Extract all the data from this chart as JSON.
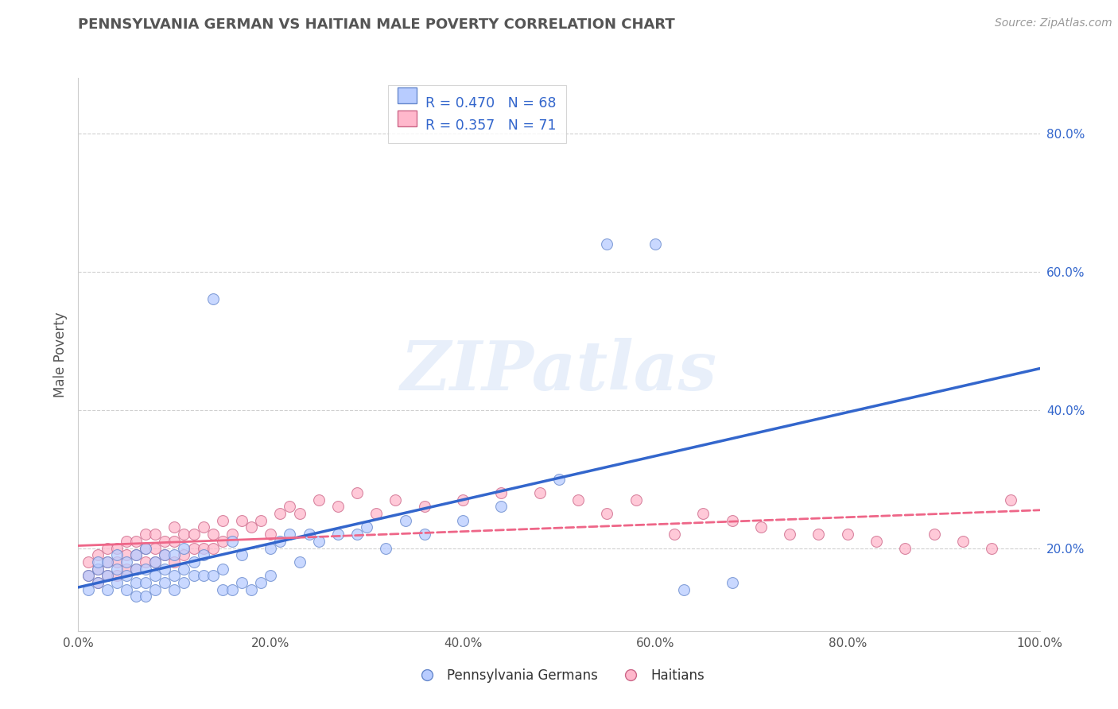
{
  "title": "PENNSYLVANIA GERMAN VS HAITIAN MALE POVERTY CORRELATION CHART",
  "source": "Source: ZipAtlas.com",
  "ylabel": "Male Poverty",
  "watermark": "ZIPatlas",
  "bg_color": "#ffffff",
  "grid_color": "#d0d0d0",
  "blue_face": "#b8ccff",
  "blue_edge": "#6688cc",
  "blue_line": "#3366cc",
  "pink_face": "#ffb8cc",
  "pink_edge": "#cc6688",
  "pink_line": "#ee6688",
  "legend_color": "#3366cc",
  "R_blue": 0.47,
  "N_blue": 68,
  "R_pink": 0.357,
  "N_pink": 71,
  "legend_label_blue": "Pennsylvania Germans",
  "legend_label_pink": "Haitians",
  "xlim": [
    0.0,
    1.0
  ],
  "ylim": [
    0.08,
    0.88
  ],
  "x_ticks": [
    0.0,
    0.2,
    0.4,
    0.6,
    0.8,
    1.0
  ],
  "x_tick_labels": [
    "0.0%",
    "20.0%",
    "40.0%",
    "60.0%",
    "80.0%",
    "100.0%"
  ],
  "y_ticks_right": [
    0.2,
    0.4,
    0.6,
    0.8
  ],
  "y_tick_labels_right": [
    "20.0%",
    "40.0%",
    "60.0%",
    "80.0%"
  ],
  "blue_scatter_x": [
    0.01,
    0.01,
    0.02,
    0.02,
    0.02,
    0.03,
    0.03,
    0.03,
    0.04,
    0.04,
    0.04,
    0.05,
    0.05,
    0.05,
    0.06,
    0.06,
    0.06,
    0.06,
    0.07,
    0.07,
    0.07,
    0.07,
    0.08,
    0.08,
    0.08,
    0.09,
    0.09,
    0.09,
    0.1,
    0.1,
    0.1,
    0.11,
    0.11,
    0.11,
    0.12,
    0.12,
    0.13,
    0.13,
    0.14,
    0.14,
    0.15,
    0.15,
    0.16,
    0.16,
    0.17,
    0.17,
    0.18,
    0.19,
    0.2,
    0.2,
    0.21,
    0.22,
    0.23,
    0.24,
    0.25,
    0.27,
    0.29,
    0.3,
    0.32,
    0.34,
    0.36,
    0.4,
    0.44,
    0.5,
    0.55,
    0.6,
    0.63,
    0.68
  ],
  "blue_scatter_y": [
    0.14,
    0.16,
    0.15,
    0.17,
    0.18,
    0.14,
    0.16,
    0.18,
    0.15,
    0.17,
    0.19,
    0.14,
    0.16,
    0.18,
    0.13,
    0.15,
    0.17,
    0.19,
    0.13,
    0.15,
    0.17,
    0.2,
    0.14,
    0.16,
    0.18,
    0.15,
    0.17,
    0.19,
    0.14,
    0.16,
    0.19,
    0.15,
    0.17,
    0.2,
    0.16,
    0.18,
    0.16,
    0.19,
    0.16,
    0.56,
    0.14,
    0.17,
    0.14,
    0.21,
    0.15,
    0.19,
    0.14,
    0.15,
    0.16,
    0.2,
    0.21,
    0.22,
    0.18,
    0.22,
    0.21,
    0.22,
    0.22,
    0.23,
    0.2,
    0.24,
    0.22,
    0.24,
    0.26,
    0.3,
    0.64,
    0.64,
    0.14,
    0.15
  ],
  "pink_scatter_x": [
    0.01,
    0.01,
    0.02,
    0.02,
    0.02,
    0.03,
    0.03,
    0.03,
    0.04,
    0.04,
    0.04,
    0.05,
    0.05,
    0.05,
    0.06,
    0.06,
    0.06,
    0.07,
    0.07,
    0.07,
    0.08,
    0.08,
    0.08,
    0.09,
    0.09,
    0.1,
    0.1,
    0.1,
    0.11,
    0.11,
    0.12,
    0.12,
    0.13,
    0.13,
    0.14,
    0.14,
    0.15,
    0.15,
    0.16,
    0.17,
    0.18,
    0.19,
    0.2,
    0.21,
    0.22,
    0.23,
    0.25,
    0.27,
    0.29,
    0.31,
    0.33,
    0.36,
    0.4,
    0.44,
    0.48,
    0.52,
    0.55,
    0.58,
    0.62,
    0.65,
    0.68,
    0.71,
    0.74,
    0.77,
    0.8,
    0.83,
    0.86,
    0.89,
    0.92,
    0.95,
    0.97
  ],
  "pink_scatter_y": [
    0.16,
    0.18,
    0.15,
    0.17,
    0.19,
    0.16,
    0.18,
    0.2,
    0.16,
    0.18,
    0.2,
    0.17,
    0.19,
    0.21,
    0.17,
    0.19,
    0.21,
    0.18,
    0.2,
    0.22,
    0.18,
    0.2,
    0.22,
    0.19,
    0.21,
    0.18,
    0.21,
    0.23,
    0.19,
    0.22,
    0.2,
    0.22,
    0.2,
    0.23,
    0.2,
    0.22,
    0.21,
    0.24,
    0.22,
    0.24,
    0.23,
    0.24,
    0.22,
    0.25,
    0.26,
    0.25,
    0.27,
    0.26,
    0.28,
    0.25,
    0.27,
    0.26,
    0.27,
    0.28,
    0.28,
    0.27,
    0.25,
    0.27,
    0.22,
    0.25,
    0.24,
    0.23,
    0.22,
    0.22,
    0.22,
    0.21,
    0.2,
    0.22,
    0.21,
    0.2,
    0.27
  ]
}
